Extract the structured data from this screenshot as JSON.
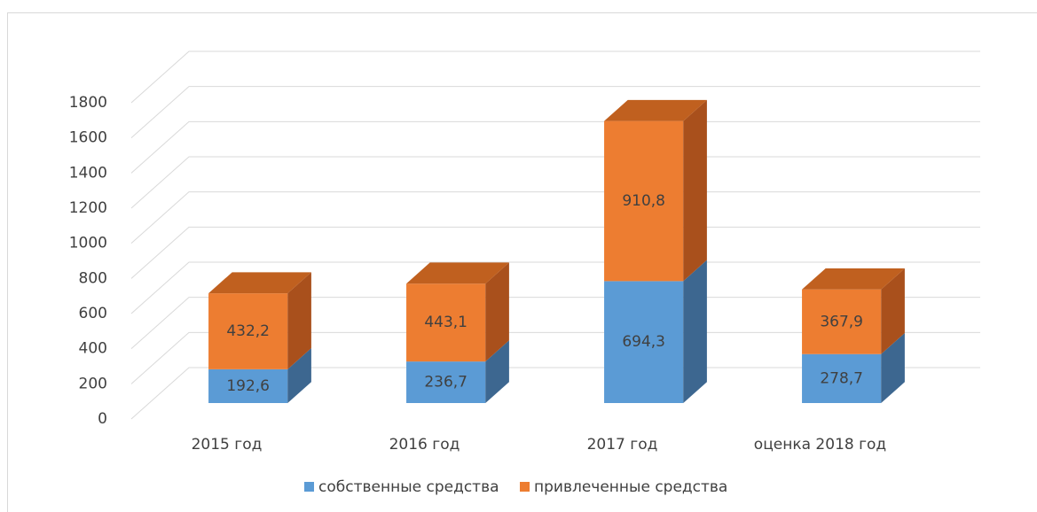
{
  "chart_data": {
    "type": "bar3d_stacked",
    "categories": [
      "2015 год",
      "2016 год",
      "2017 год",
      "оценка 2018 год"
    ],
    "series": [
      {
        "name": "собственные средства",
        "color": "#5b9bd5",
        "side_color": "#3d6790",
        "values": [
          192.6,
          236.7,
          694.3,
          278.7
        ],
        "value_labels": [
          "192,6",
          "236,7",
          "694,3",
          "278,7"
        ]
      },
      {
        "name": "привлеченные средства",
        "color": "#ed7d31",
        "side_color": "#a9501c",
        "top_color": "#c0601f",
        "values": [
          432.2,
          443.1,
          910.8,
          367.9
        ],
        "value_labels": [
          "432,2",
          "443,1",
          "910,8",
          "367,9"
        ]
      }
    ],
    "ylim": [
      0,
      1800
    ],
    "yticks": [
      0,
      200,
      400,
      600,
      800,
      1000,
      1200,
      1400,
      1600,
      1800
    ],
    "grid": true,
    "legend": "bottom"
  }
}
